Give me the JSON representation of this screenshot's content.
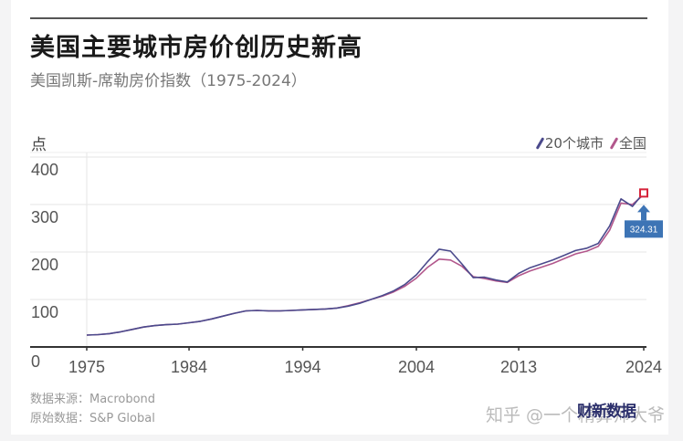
{
  "header": {
    "title": "美国主要城市房价创历史新高",
    "subtitle": "美国凯斯-席勒房价指数（1975-2024）"
  },
  "footer": {
    "source": "数据来源：Macrobond",
    "original": "原始数据：S&P Global",
    "watermark": "知乎 @一个精算师大爷",
    "logo": "财新数据"
  },
  "colors": {
    "series_20city": "#4b4a8c",
    "series_national": "#b2578c",
    "callout": "#3d74b5",
    "endpoint_marker": "#d6233a",
    "grid": "#e6e6e6",
    "axis": "#333333"
  },
  "chart_data": {
    "type": "line",
    "title": "美国主要城市房价创历史新高",
    "subtitle": "美国凯斯-席勒房价指数（1975-2024）",
    "xlabel": "",
    "ylabel": "点",
    "ylim": [
      0,
      400
    ],
    "xlim": [
      1975,
      2024
    ],
    "yticks": [
      "0",
      "100",
      "200",
      "300",
      "400"
    ],
    "xticks": [
      "1975",
      "1984",
      "1994",
      "2004",
      "2013",
      "2024"
    ],
    "grid": true,
    "legend_position": "top-right",
    "legend": [
      "20个城市",
      "全国"
    ],
    "annotation": {
      "label": "324.31",
      "x": 2024,
      "y": 324.31
    },
    "x": [
      1975,
      1976,
      1977,
      1978,
      1979,
      1980,
      1981,
      1982,
      1983,
      1984,
      1985,
      1986,
      1987,
      1988,
      1989,
      1990,
      1991,
      1992,
      1993,
      1994,
      1995,
      1996,
      1997,
      1998,
      1999,
      2000,
      2001,
      2002,
      2003,
      2004,
      2005,
      2006,
      2007,
      2008,
      2009,
      2010,
      2011,
      2012,
      2013,
      2014,
      2015,
      2016,
      2017,
      2018,
      2019,
      2020,
      2021,
      2022,
      2023,
      2024
    ],
    "series": [
      {
        "name": "20个城市",
        "values": [
          25,
          26,
          28,
          32,
          37,
          42,
          45,
          47,
          48,
          51,
          54,
          59,
          65,
          71,
          76,
          77,
          76,
          76,
          77,
          78,
          79,
          80,
          82,
          86,
          92,
          100,
          108,
          118,
          132,
          152,
          180,
          206,
          202,
          175,
          146,
          147,
          141,
          137,
          155,
          167,
          175,
          183,
          193,
          203,
          208,
          218,
          255,
          312,
          296,
          325
        ]
      },
      {
        "name": "全国",
        "values": [
          25,
          26,
          28,
          32,
          37,
          42,
          45,
          47,
          48,
          51,
          54,
          59,
          65,
          71,
          76,
          77,
          76,
          76,
          77,
          78,
          79,
          80,
          82,
          87,
          93,
          100,
          107,
          116,
          128,
          145,
          168,
          185,
          183,
          170,
          148,
          144,
          139,
          136,
          150,
          160,
          168,
          176,
          186,
          196,
          202,
          212,
          246,
          303,
          300,
          321
        ]
      }
    ]
  }
}
